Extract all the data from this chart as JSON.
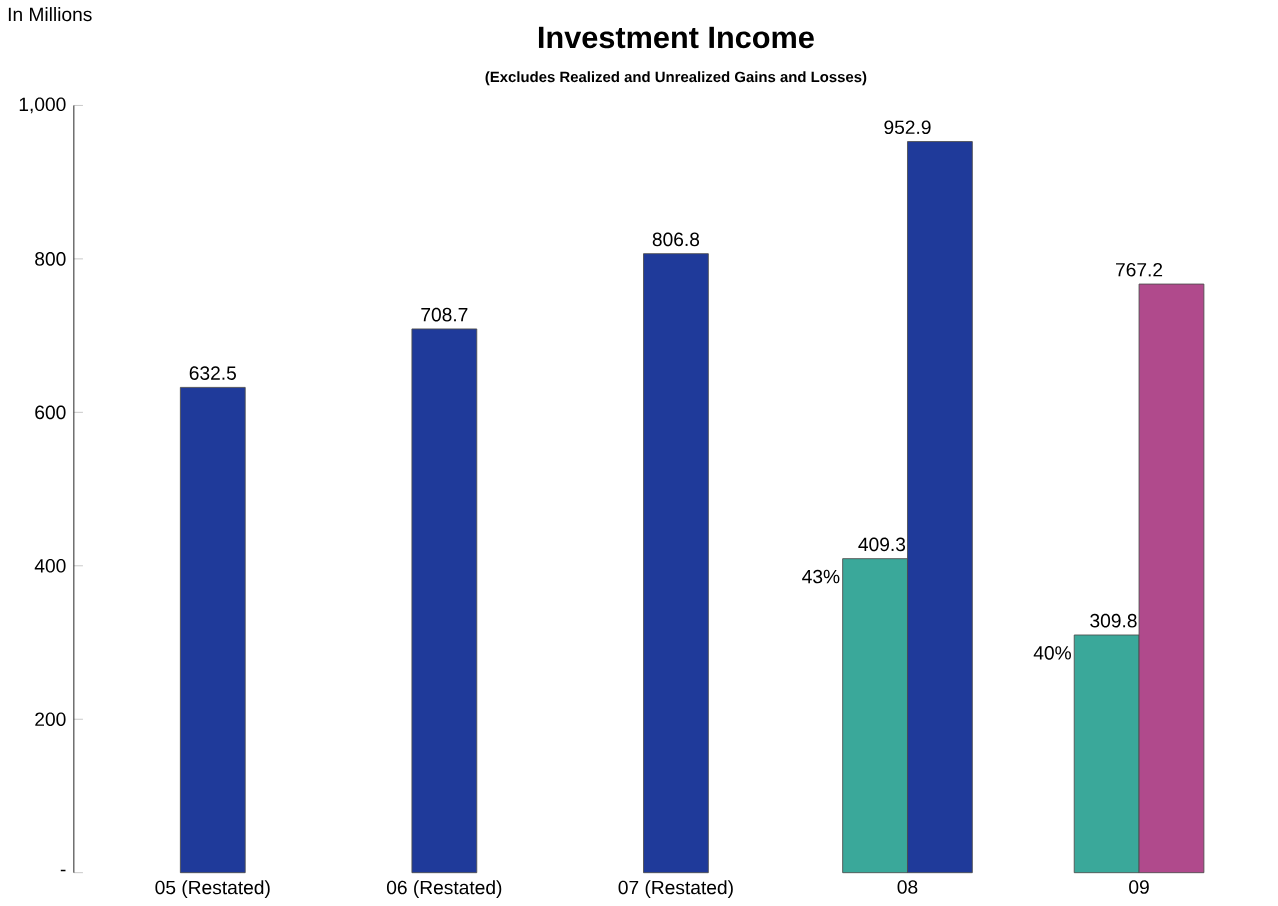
{
  "chart_data": {
    "type": "bar",
    "title": "Investment Income",
    "subtitle": "(Excludes Realized and Unrealized Gains and Losses)",
    "ylabel": "In Millions",
    "categories": [
      "05 (Restated)",
      "06 (Restated)",
      "07 (Restated)",
      "08",
      "09"
    ],
    "series": [
      {
        "color": "#3aa89a",
        "values": [
          null,
          null,
          null,
          409.3,
          309.8
        ]
      },
      {
        "color": "#1f3a9a",
        "colors": [
          null,
          null,
          null,
          null,
          "#b04a8c"
        ],
        "values": [
          632.5,
          708.7,
          806.8,
          952.9,
          767.2
        ]
      }
    ],
    "ylim": [
      0,
      1000
    ],
    "yticks": [
      {
        "value": 0,
        "label": "-"
      },
      200,
      400,
      600,
      800,
      {
        "value": 1000,
        "label": "1,000"
      }
    ],
    "data_labels": true,
    "annotations": [
      "43%",
      "40%"
    ]
  }
}
